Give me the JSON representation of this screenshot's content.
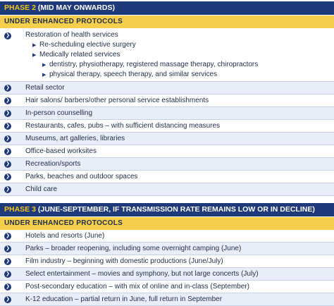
{
  "phase2": {
    "label": "PHASE 2",
    "period": "(MID MAY ONWARDS)",
    "protocol": "UNDER ENHANCED PROTOCOLS",
    "health": {
      "title": "Restoration of health services",
      "sub1": "Re-scheduling elective surgery",
      "sub2": "Medically related services",
      "sub2a": "dentistry, physiotherapy, registered massage therapy, chiropractors",
      "sub2b": "physical therapy, speech therapy, and similar services"
    },
    "items": [
      "Retail sector",
      "Hair salons/ barbers/other personal service establishments",
      "In-person counselling",
      "Restaurants, cafes, pubs – with sufficient distancing measures",
      "Museums, art galleries, libraries",
      "Office-based worksites",
      "Recreation/sports",
      "Parks, beaches and outdoor spaces",
      "Child care"
    ]
  },
  "phase3": {
    "label": "PHASE 3",
    "period": "(JUNE-SEPTEMBER, IF TRANSMISSION RATE REMAINS LOW OR IN DECLINE)",
    "protocol": "UNDER ENHANCED PROTOCOLS",
    "items": [
      "Hotels and resorts (June)",
      "Parks – broader reopening, including some overnight camping (June)",
      "Film industry – beginning with domestic productions (June/July)",
      "Select entertainment – movies and symphony, but not large concerts (July)",
      "Post-secondary education – with mix of online and in-class (September)",
      "K-12 education – partial return in June, full return in September"
    ]
  },
  "colors": {
    "header_bg": "#1f3a7a",
    "header_accent": "#f5c518",
    "protocol_bg": "#f5cf4b",
    "row_alt_bg": "#e8edf7"
  }
}
